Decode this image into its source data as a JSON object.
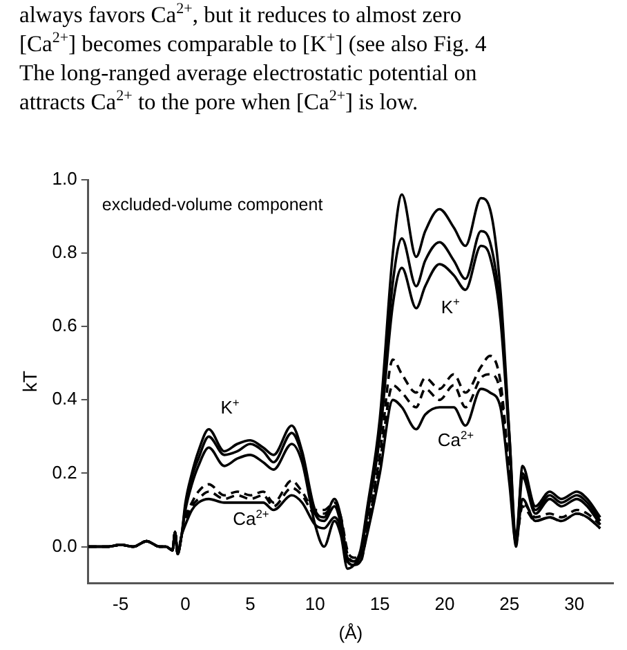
{
  "chart_data": {
    "type": "line",
    "title": "excluded-volume component",
    "xlabel": "(Å)",
    "ylabel": "kT",
    "annotations": [
      "always favors Ca$^{2+}$, but it reduces to almost zero",
      "[Ca$^{2+}$] becomes comparable to [K$^{+}$] (see also Fig. 4",
      "The long-ranged average electrostatic potential on",
      "attracts Ca$^{2+}$ to the pore when [Ca$^{2+}$] is low.",
      "K$^{+}$",
      "K$^{+}$",
      "Ca$^{2+}$",
      "Ca$^{2+}$"
    ],
    "x": [
      -7.5,
      -6,
      -5,
      -4,
      -3,
      -2,
      -1.5,
      -1,
      -0.8,
      -0.6,
      -0.3,
      0,
      0.5,
      1,
      1.8,
      3,
      4,
      5,
      6,
      6.8,
      8.2,
      9,
      10,
      10.7,
      11.5,
      12,
      12.5,
      13,
      13.5,
      14,
      15,
      16,
      16.7,
      17.8,
      18.5,
      19.6,
      20.7,
      21.6,
      22.8,
      23.5,
      24.3,
      25,
      25.5,
      26,
      27,
      28.1,
      29,
      30.2,
      31,
      32
    ],
    "series": [
      {
        "color": "#000000",
        "values": [
          0,
          0,
          0.005,
          0,
          0.015,
          0,
          0,
          -0.01,
          0.04,
          -0.02,
          0.03,
          0.12,
          0.2,
          0.26,
          0.32,
          0.26,
          0.28,
          0.29,
          0.27,
          0.25,
          0.33,
          0.26,
          0.1,
          0.08,
          0.13,
          0.08,
          -0.03,
          -0.04,
          -0.01,
          0.1,
          0.35,
          0.8,
          0.96,
          0.79,
          0.86,
          0.92,
          0.87,
          0.82,
          0.95,
          0.92,
          0.7,
          0.3,
          0.01,
          0.22,
          0.11,
          0.15,
          0.13,
          0.15,
          0.13,
          0.08
        ]
      },
      {
        "color": "#000000",
        "values": [
          0,
          0,
          0.005,
          0,
          0.015,
          0,
          0,
          -0.01,
          0.04,
          -0.02,
          0.03,
          0.11,
          0.19,
          0.24,
          0.3,
          0.25,
          0.26,
          0.28,
          0.26,
          0.23,
          0.31,
          0.25,
          0.09,
          0.07,
          0.11,
          0.06,
          -0.04,
          -0.05,
          -0.02,
          0.09,
          0.33,
          0.72,
          0.84,
          0.71,
          0.78,
          0.83,
          0.78,
          0.73,
          0.86,
          0.83,
          0.65,
          0.3,
          0.03,
          0.2,
          0.1,
          0.14,
          0.12,
          0.14,
          0.12,
          0.07
        ]
      },
      {
        "color": "#000000",
        "values": [
          0,
          0,
          0.005,
          0,
          0.015,
          0,
          0,
          -0.01,
          0.04,
          -0.02,
          0.03,
          0.1,
          0.17,
          0.22,
          0.27,
          0.22,
          0.24,
          0.25,
          0.23,
          0.21,
          0.28,
          0.23,
          0.06,
          0,
          0.07,
          0.03,
          -0.06,
          -0.05,
          -0.02,
          0.08,
          0.3,
          0.66,
          0.76,
          0.65,
          0.71,
          0.77,
          0.74,
          0.7,
          0.82,
          0.79,
          0.62,
          0.28,
          0,
          0.19,
          0.09,
          0.13,
          0.11,
          0.13,
          0.11,
          0.06
        ]
      },
      {
        "color": "#000000",
        "line_style": "dashed",
        "values": [
          0,
          0,
          0.005,
          0,
          0.015,
          0,
          0,
          -0.01,
          0.04,
          -0.02,
          0.03,
          0.08,
          0.12,
          0.15,
          0.17,
          0.14,
          0.15,
          0.14,
          0.15,
          0.12,
          0.18,
          0.15,
          0.1,
          0.1,
          0.12,
          0.08,
          -0.01,
          -0.03,
          -0.03,
          0.05,
          0.25,
          0.51,
          0.47,
          0.42,
          0.46,
          0.43,
          0.47,
          0.42,
          0.49,
          0.52,
          0.45,
          0.2,
          0.02,
          0.12,
          0.08,
          0.09,
          0.08,
          0.1,
          0.09,
          0.06
        ]
      },
      {
        "color": "#000000",
        "line_style": "dashed",
        "values": [
          0,
          0,
          0.005,
          0,
          0.015,
          0,
          0,
          -0.01,
          0.04,
          -0.02,
          0.03,
          0.07,
          0.11,
          0.13,
          0.15,
          0.13,
          0.14,
          0.13,
          0.14,
          0.11,
          0.16,
          0.14,
          0.09,
          0.09,
          0.11,
          0.07,
          -0.02,
          -0.04,
          -0.04,
          0.04,
          0.23,
          0.44,
          0.42,
          0.38,
          0.43,
          0.4,
          0.44,
          0.38,
          0.46,
          0.47,
          0.42,
          0.19,
          0.02,
          0.11,
          0.07,
          0.08,
          0.07,
          0.09,
          0.08,
          0.05
        ]
      },
      {
        "color": "#000000",
        "values": [
          0,
          0,
          0.005,
          0,
          0.015,
          0,
          0,
          -0.01,
          0.04,
          -0.02,
          0.03,
          0.06,
          0.1,
          0.12,
          0.13,
          0.12,
          0.12,
          0.12,
          0.12,
          0.1,
          0.14,
          0.12,
          0.06,
          0.05,
          0.08,
          0.05,
          -0.04,
          -0.05,
          -0.04,
          0.03,
          0.2,
          0.4,
          0.38,
          0.32,
          0.36,
          0.38,
          0.38,
          0.33,
          0.43,
          0.42,
          0.38,
          0.17,
          0.01,
          0.13,
          0.07,
          0.08,
          0.07,
          0.09,
          0.08,
          0.05
        ]
      }
    ],
    "xlim": [
      -7.5,
      33
    ],
    "ylim": [
      -0.1,
      1.0
    ],
    "xticks": [
      -5,
      0,
      5,
      10,
      15,
      20,
      25,
      30
    ],
    "yticks": [
      {
        "value": 0,
        "label": "0.0"
      },
      0.2,
      0.4,
      0.6,
      0.8,
      {
        "value": 1,
        "label": "1.0"
      }
    ]
  }
}
